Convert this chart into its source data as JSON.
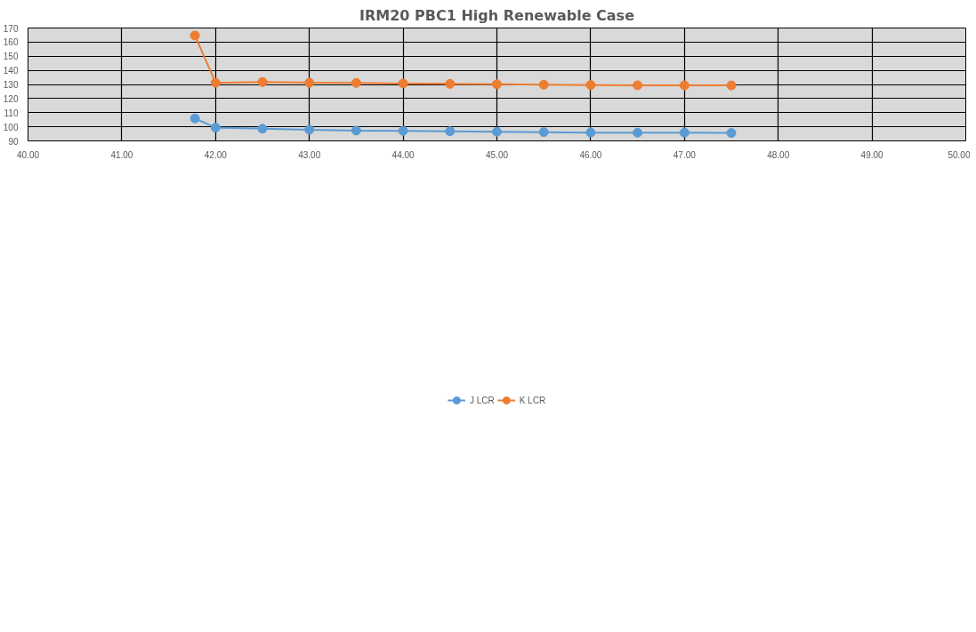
{
  "chart_data": {
    "type": "line",
    "title": "IRM20 PBC1 High Renewable Case",
    "x": [
      41.78,
      42,
      42.5,
      43,
      43.5,
      44,
      44.5,
      45,
      45.5,
      46,
      46.5,
      47,
      47.5
    ],
    "series": [
      {
        "name": "J LCR",
        "color": "#5b9bd5",
        "values": [
          105.9,
          99.4,
          98.6,
          97.9,
          97.3,
          97.1,
          96.8,
          96.5,
          96.2,
          95.9,
          95.8,
          95.8,
          95.6
        ]
      },
      {
        "name": "K LCR",
        "color": "#ed7d31",
        "values": [
          164.7,
          131.2,
          131.7,
          131.2,
          131.1,
          130.7,
          130.4,
          130.1,
          129.8,
          129.6,
          129.4,
          129.3,
          129.3
        ]
      }
    ],
    "xlim": [
      40,
      50
    ],
    "xticks": [
      {
        "value": 40,
        "label": "40.00"
      },
      {
        "value": 41,
        "label": "41.00"
      },
      {
        "value": 42,
        "label": "42.00"
      },
      {
        "value": 43,
        "label": "43.00"
      },
      {
        "value": 44,
        "label": "44.00"
      },
      {
        "value": 45,
        "label": "45.00"
      },
      {
        "value": 46,
        "label": "46.00"
      },
      {
        "value": 47,
        "label": "47.00"
      },
      {
        "value": 48,
        "label": "48.00"
      },
      {
        "value": 49,
        "label": "49.00"
      },
      {
        "value": 50,
        "label": "50.00"
      }
    ],
    "ylim": [
      90,
      170
    ],
    "yticks": [
      90,
      100,
      110,
      120,
      130,
      140,
      150,
      160,
      170
    ],
    "grid": true,
    "legend": "bottom",
    "marker": "circle",
    "line_style": "solid"
  }
}
